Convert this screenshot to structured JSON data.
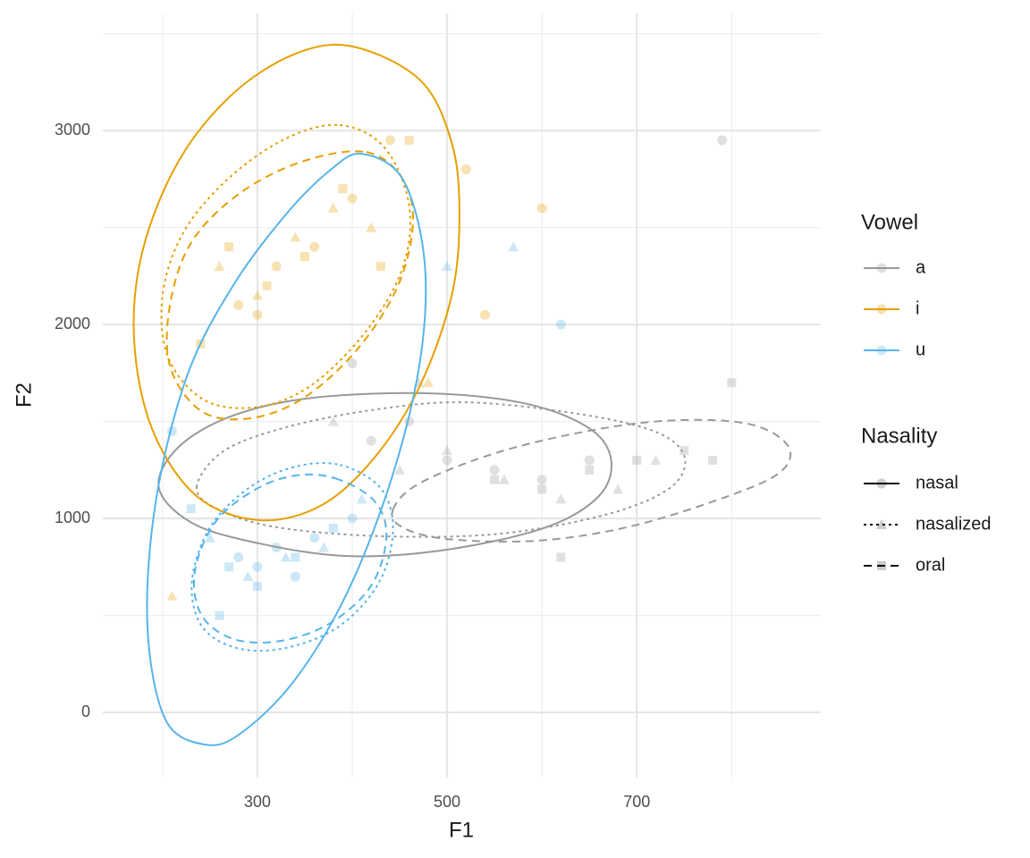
{
  "chart_data": {
    "type": "scatter",
    "x_label": "F1",
    "y_label": "F2",
    "xlim": [
      137,
      894
    ],
    "ylim": [
      -336,
      3604
    ],
    "xticks": [
      300,
      500,
      700
    ],
    "yticks": [
      0,
      1000,
      2000,
      3000
    ],
    "minor_xticks": [
      200,
      400,
      600,
      800
    ],
    "minor_yticks": [
      500,
      1500,
      2500,
      3500
    ],
    "grid": true,
    "legend_position": "right",
    "vowels": {
      "title": "Vowel",
      "entries": [
        {
          "name": "a",
          "color": "#999999"
        },
        {
          "name": "i",
          "color": "#E69F00"
        },
        {
          "name": "u",
          "color": "#56B4E9"
        }
      ]
    },
    "nasality": {
      "title": "Nasality",
      "entries": [
        {
          "name": "nasal",
          "dash": "solid",
          "shape": "circle"
        },
        {
          "name": "nasalized",
          "dash": "dotted",
          "shape": "triangle"
        },
        {
          "name": "oral",
          "dash": "dashed",
          "shape": "square"
        }
      ]
    },
    "points": [
      {
        "vowel": "a",
        "nasality": "nasal",
        "x": [
          420,
          460,
          500,
          550,
          600,
          650,
          400,
          790
        ],
        "y": [
          1400,
          1500,
          1300,
          1250,
          1200,
          1300,
          1800,
          2950
        ]
      },
      {
        "vowel": "a",
        "nasality": "nasalized",
        "x": [
          450,
          500,
          560,
          620,
          680,
          720,
          380,
          470
        ],
        "y": [
          1250,
          1350,
          1200,
          1100,
          1150,
          1300,
          1500,
          1700
        ]
      },
      {
        "vowel": "a",
        "nasality": "oral",
        "x": [
          550,
          600,
          650,
          700,
          750,
          780,
          800,
          620
        ],
        "y": [
          1200,
          1150,
          1250,
          1300,
          1350,
          1300,
          1700,
          800
        ]
      },
      {
        "vowel": "i",
        "nasality": "nasal",
        "x": [
          280,
          300,
          320,
          360,
          400,
          440,
          520,
          540,
          600
        ],
        "y": [
          2100,
          2050,
          2300,
          2400,
          2650,
          2950,
          2800,
          2050,
          2600
        ]
      },
      {
        "vowel": "i",
        "nasality": "nasalized",
        "x": [
          260,
          300,
          340,
          380,
          420,
          480,
          210
        ],
        "y": [
          2300,
          2150,
          2450,
          2600,
          2500,
          1700,
          600
        ]
      },
      {
        "vowel": "i",
        "nasality": "oral",
        "x": [
          270,
          310,
          350,
          390,
          430,
          460,
          240
        ],
        "y": [
          2400,
          2200,
          2350,
          2700,
          2300,
          2950,
          1900
        ]
      },
      {
        "vowel": "u",
        "nasality": "nasal",
        "x": [
          280,
          300,
          320,
          340,
          360,
          400,
          210,
          620
        ],
        "y": [
          800,
          750,
          850,
          700,
          900,
          1000,
          1450,
          2000
        ]
      },
      {
        "vowel": "u",
        "nasality": "nasalized",
        "x": [
          250,
          290,
          330,
          370,
          410,
          500,
          570
        ],
        "y": [
          900,
          700,
          800,
          850,
          1100,
          2300,
          2400
        ]
      },
      {
        "vowel": "u",
        "nasality": "oral",
        "x": [
          270,
          300,
          340,
          380,
          230,
          260
        ],
        "y": [
          750,
          650,
          800,
          950,
          1050,
          500
        ]
      }
    ],
    "ellipses": [
      {
        "vowel": "a",
        "nasality": "nasal",
        "x": [
          196,
          217,
          274,
          358,
          481,
          585,
          651,
          673,
          660,
          604,
          500,
          396,
          302,
          231
        ],
        "y": [
          1161,
          1369,
          1530,
          1622,
          1645,
          1590,
          1461,
          1300,
          1115,
          954,
          839,
          806,
          871,
          977
        ]
      },
      {
        "vowel": "a",
        "nasality": "nasalized",
        "x": [
          236,
          264,
          330,
          425,
          519,
          632,
          717,
          750,
          736,
          670,
          557,
          434,
          321,
          259
        ],
        "y": [
          1161,
          1346,
          1470,
          1562,
          1599,
          1544,
          1452,
          1323,
          1161,
          1023,
          922,
          908,
          954,
          1046
        ]
      },
      {
        "vowel": "a",
        "nasality": "oral",
        "x": [
          443,
          472,
          557,
          660,
          745,
          821,
          860,
          849,
          783,
          689,
          594,
          500,
          453
        ],
        "y": [
          1046,
          1184,
          1346,
          1461,
          1507,
          1484,
          1369,
          1230,
          1092,
          954,
          885,
          894,
          954
        ]
      },
      {
        "vowel": "i",
        "nasality": "nasal",
        "x": [
          401,
          472,
          505,
          513,
          505,
          472,
          425,
          368,
          302,
          236,
          189,
          170,
          179,
          217,
          274,
          340
        ],
        "y": [
          3433,
          3258,
          2935,
          2567,
          2152,
          1691,
          1323,
          1069,
          991,
          1115,
          1461,
          1922,
          2382,
          2843,
          3189,
          3396
        ]
      },
      {
        "vowel": "i",
        "nasality": "nasalized",
        "x": [
          387,
          434,
          460,
          453,
          415,
          358,
          302,
          245,
          206,
          200,
          222,
          269,
          330
        ],
        "y": [
          3028,
          2912,
          2613,
          2290,
          1968,
          1691,
          1576,
          1608,
          1829,
          2152,
          2475,
          2751,
          2959
        ]
      },
      {
        "vowel": "i",
        "nasality": "oral",
        "x": [
          415,
          453,
          464,
          448,
          406,
          349,
          292,
          241,
          208,
          208,
          231,
          283,
          349
        ],
        "y": [
          2889,
          2751,
          2521,
          2198,
          1876,
          1622,
          1516,
          1553,
          1783,
          2106,
          2429,
          2682,
          2843
        ]
      },
      {
        "vowel": "u",
        "nasality": "nasal",
        "x": [
          410,
          453,
          476,
          472,
          443,
          396,
          340,
          283,
          245,
          203,
          184,
          193,
          226,
          274,
          330,
          377
        ],
        "y": [
          2880,
          2751,
          2336,
          1829,
          1230,
          631,
          171,
          -106,
          -166,
          -37,
          447,
          1092,
          1737,
          2198,
          2567,
          2797
        ]
      },
      {
        "vowel": "u",
        "nasality": "nasalized",
        "x": [
          387,
          429,
          443,
          429,
          387,
          330,
          278,
          241,
          231,
          250,
          292,
          340
        ],
        "y": [
          1276,
          1161,
          954,
          677,
          447,
          332,
          332,
          447,
          677,
          954,
          1161,
          1267
        ]
      },
      {
        "vowel": "u",
        "nasality": "oral",
        "x": [
          382,
          423,
          436,
          420,
          377,
          325,
          275,
          241,
          234,
          255,
          297,
          340
        ],
        "y": [
          1207,
          1092,
          908,
          654,
          461,
          369,
          378,
          502,
          724,
          977,
          1147,
          1221
        ]
      }
    ]
  }
}
